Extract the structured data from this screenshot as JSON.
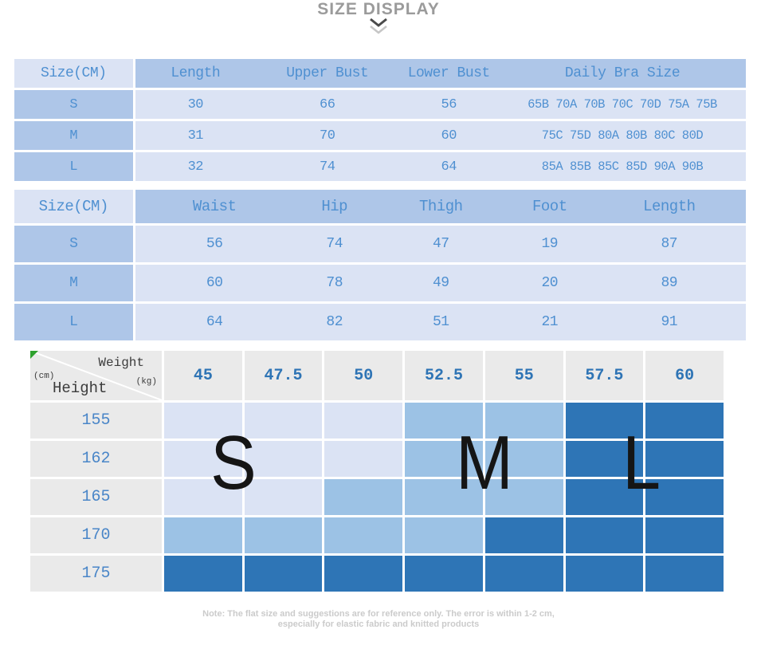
{
  "title": "SIZE DISPLAY",
  "note": {
    "line1": "Note: The flat size and suggestions are for reference only. The error is within 1-2 cm,",
    "line2": "especially for elastic fabric and knitted products"
  },
  "colors": {
    "header_blue": "#aec6e8",
    "cell_light": "#dbe3f4",
    "cell_mid": "#9cc2e5",
    "cell_dark": "#2e75b6",
    "table_text_blue": "#4f90d1",
    "matrix_num_blue": "#2e74b5",
    "matrix_height_blue": "#4a86c8",
    "header_gray": "#eaeaea",
    "title_gray": "#9b9b9b",
    "note_gray": "#cbcbcb",
    "corner_text": "#3c3c3c",
    "corner_flag_green": "#2ea12e",
    "chevron_dark": "#4a4a4a",
    "chevron_light": "#c6c6c6"
  },
  "chart_data": [
    {
      "type": "table",
      "name": "top_garment_size_table",
      "columns": [
        "Size(CM)",
        "Length",
        "Upper Bust",
        "Lower Bust",
        "Daily Bra Size"
      ],
      "rows": [
        [
          "S",
          "30",
          "66",
          "56",
          "65B 70A 70B 70C 70D 75A 75B"
        ],
        [
          "M",
          "31",
          "70",
          "60",
          "75C 75D 80A 80B 80C 80D"
        ],
        [
          "L",
          "32",
          "74",
          "64",
          "85A 85B 85C 85D 90A 90B"
        ]
      ]
    },
    {
      "type": "table",
      "name": "bottom_garment_size_table",
      "columns": [
        "Size(CM)",
        "Waist",
        "Hip",
        "Thigh",
        "Foot",
        "Length"
      ],
      "rows": [
        [
          "S",
          "56",
          "74",
          "47",
          "19",
          "87"
        ],
        [
          "M",
          "60",
          "78",
          "49",
          "20",
          "89"
        ],
        [
          "L",
          "64",
          "82",
          "51",
          "21",
          "91"
        ]
      ]
    },
    {
      "type": "heatmap",
      "name": "height_weight_size_matrix",
      "xlabel": "Weight (kg)",
      "ylabel": "Height (cm)",
      "x": [
        45,
        47.5,
        50,
        52.5,
        55,
        57.5,
        60
      ],
      "y": [
        155,
        162,
        165,
        170,
        175
      ],
      "values": [
        [
          "S",
          "S",
          "S",
          "M",
          "M",
          "L",
          "L"
        ],
        [
          "S",
          "S",
          "S",
          "M",
          "M",
          "L",
          "L"
        ],
        [
          "S",
          "S",
          "M",
          "M",
          "M",
          "L",
          "L"
        ],
        [
          "M",
          "M",
          "M",
          "M",
          "L",
          "L",
          "L"
        ],
        [
          "L",
          "L",
          "L",
          "L",
          "L",
          "L",
          "L"
        ]
      ],
      "legend": [
        {
          "size": "S",
          "color": "#dbe3f4"
        },
        {
          "size": "M",
          "color": "#9cc2e5"
        },
        {
          "size": "L",
          "color": "#2e75b6"
        }
      ],
      "overlay_letters": [
        "S",
        "M",
        "L"
      ],
      "corner": {
        "weight_label": "Weight",
        "weight_unit": "(kg)",
        "height_label": "Height",
        "height_unit": "(cm)"
      }
    }
  ]
}
